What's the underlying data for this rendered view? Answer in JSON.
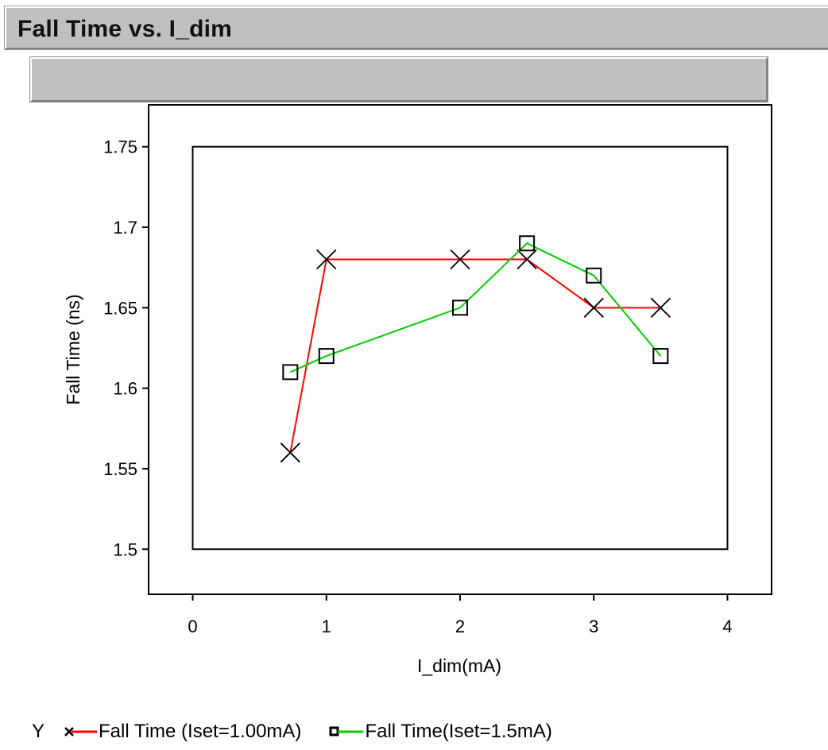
{
  "title": "Fall Time vs. I_dim",
  "subtitle": "",
  "legend": {
    "axis_label": "Y"
  },
  "colors": {
    "series1": "#ff0000",
    "series2": "#00cc00",
    "frame": "#000000",
    "panel": "#c0c0c0"
  },
  "chart_data": {
    "type": "line",
    "xlabel": "I_dim(mA)",
    "ylabel": "Fall Time (ns)",
    "xlim": [
      -0.33,
      4.33
    ],
    "ylim": [
      1.472,
      1.776
    ],
    "inner_frame": {
      "x": [
        0,
        4
      ],
      "y": [
        1.5,
        1.75
      ]
    },
    "x_ticks": [
      0,
      1,
      2,
      3,
      4
    ],
    "x_tick_labels": [
      "0",
      "1",
      "2",
      "3",
      "4"
    ],
    "y_ticks": [
      1.5,
      1.55,
      1.6,
      1.65,
      1.7,
      1.75
    ],
    "y_tick_labels": [
      "1.5",
      "1.55",
      "1.6",
      "1.65",
      "1.7",
      "1.75"
    ],
    "grid": false,
    "legend_position": "bottom-left",
    "series": [
      {
        "name": "Fall Time (Iset=1.00mA)",
        "marker": "x",
        "color": "#ff0000",
        "x": [
          0.73,
          1.0,
          2.0,
          2.5,
          3.0,
          3.5
        ],
        "y": [
          1.56,
          1.68,
          1.68,
          1.68,
          1.65,
          1.65
        ]
      },
      {
        "name": "Fall Time(Iset=1.5mA)",
        "marker": "square",
        "color": "#00cc00",
        "x": [
          0.73,
          1.0,
          2.0,
          2.5,
          3.0,
          3.5
        ],
        "y": [
          1.61,
          1.62,
          1.65,
          1.69,
          1.67,
          1.62
        ]
      }
    ]
  }
}
